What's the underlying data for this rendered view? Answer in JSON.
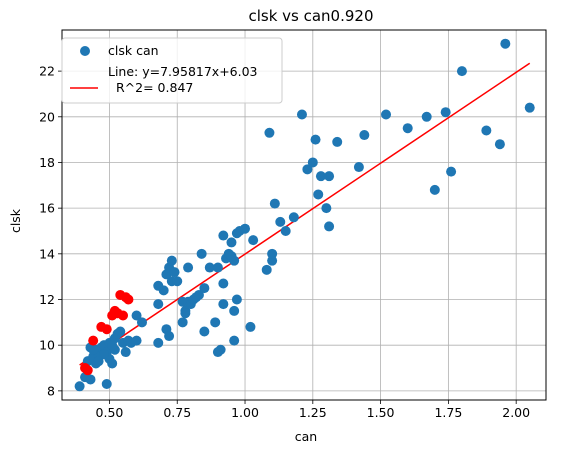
{
  "chart_data": {
    "type": "scatter",
    "title": "clsk vs can0.920",
    "xlabel": "can",
    "ylabel": "clsk",
    "xlim": [
      0.325,
      2.11
    ],
    "ylim": [
      7.6,
      23.8
    ],
    "xticks": [
      0.5,
      0.75,
      1.0,
      1.25,
      1.5,
      1.75,
      2.0
    ],
    "xtick_labels": [
      "0.50",
      "0.75",
      "1.00",
      "1.25",
      "1.50",
      "1.75",
      "2.00"
    ],
    "yticks": [
      8,
      10,
      12,
      14,
      16,
      18,
      20,
      22
    ],
    "ytick_labels": [
      "8",
      "10",
      "12",
      "14",
      "16",
      "18",
      "20",
      "22"
    ],
    "grid": true,
    "legend_position": "top-left",
    "legend": {
      "scatter_label": "clsk can",
      "line_label_1": "Line: y=7.95817x+6.03",
      "line_label_2": "R^2= 0.847"
    },
    "colors": {
      "points": "#1f77b4",
      "highlight_points": "#ff0000",
      "fit_line": "#ff0000",
      "grid": "#b0b0b0"
    },
    "fit_line": {
      "slope": 7.95817,
      "intercept": 6.03,
      "x_range": [
        0.39,
        2.05
      ]
    },
    "points": [
      [
        0.39,
        8.2
      ],
      [
        0.41,
        8.6
      ],
      [
        0.43,
        8.5
      ],
      [
        0.42,
        9.3
      ],
      [
        0.44,
        9.5
      ],
      [
        0.45,
        9.2
      ],
      [
        0.43,
        9.9
      ],
      [
        0.45,
        9.8
      ],
      [
        0.46,
        9.6
      ],
      [
        0.47,
        9.9
      ],
      [
        0.48,
        10.0
      ],
      [
        0.49,
        9.7
      ],
      [
        0.5,
        10.1
      ],
      [
        0.5,
        9.4
      ],
      [
        0.51,
        9.2
      ],
      [
        0.52,
        9.8
      ],
      [
        0.52,
        10.3
      ],
      [
        0.53,
        10.5
      ],
      [
        0.54,
        10.6
      ],
      [
        0.49,
        8.3
      ],
      [
        0.51,
        10.0
      ],
      [
        0.48,
        9.6
      ],
      [
        0.46,
        9.3
      ],
      [
        0.44,
        9.8
      ],
      [
        0.55,
        10.1
      ],
      [
        0.57,
        10.2
      ],
      [
        0.56,
        9.7
      ],
      [
        0.58,
        10.1
      ],
      [
        0.6,
        10.2
      ],
      [
        0.6,
        11.3
      ],
      [
        0.62,
        11.0
      ],
      [
        0.68,
        10.1
      ],
      [
        0.68,
        11.8
      ],
      [
        0.7,
        12.4
      ],
      [
        0.68,
        12.6
      ],
      [
        0.71,
        10.7
      ],
      [
        0.72,
        10.4
      ],
      [
        0.71,
        13.1
      ],
      [
        0.72,
        13.4
      ],
      [
        0.73,
        13.7
      ],
      [
        0.73,
        12.8
      ],
      [
        0.75,
        12.8
      ],
      [
        0.74,
        13.2
      ],
      [
        0.77,
        11.0
      ],
      [
        0.78,
        11.5
      ],
      [
        0.77,
        11.9
      ],
      [
        0.78,
        11.4
      ],
      [
        0.79,
        13.4
      ],
      [
        0.79,
        11.9
      ],
      [
        0.8,
        11.8
      ],
      [
        0.81,
        12.0
      ],
      [
        0.82,
        12.1
      ],
      [
        0.83,
        12.2
      ],
      [
        0.84,
        14.0
      ],
      [
        0.85,
        10.6
      ],
      [
        0.85,
        12.5
      ],
      [
        0.87,
        13.4
      ],
      [
        0.89,
        11.0
      ],
      [
        0.9,
        9.7
      ],
      [
        0.91,
        9.8
      ],
      [
        0.9,
        13.4
      ],
      [
        0.92,
        11.8
      ],
      [
        0.92,
        12.7
      ],
      [
        0.92,
        14.8
      ],
      [
        0.93,
        13.8
      ],
      [
        0.94,
        14.0
      ],
      [
        0.95,
        14.5
      ],
      [
        0.96,
        11.5
      ],
      [
        0.96,
        10.2
      ],
      [
        0.96,
        13.7
      ],
      [
        0.95,
        13.9
      ],
      [
        0.97,
        12.0
      ],
      [
        0.97,
        14.9
      ],
      [
        0.98,
        15.0
      ],
      [
        1.0,
        15.1
      ],
      [
        1.02,
        10.8
      ],
      [
        1.03,
        14.6
      ],
      [
        1.08,
        13.3
      ],
      [
        1.09,
        19.3
      ],
      [
        1.1,
        13.7
      ],
      [
        1.1,
        14.0
      ],
      [
        1.11,
        16.2
      ],
      [
        1.13,
        15.4
      ],
      [
        1.15,
        15.0
      ],
      [
        1.18,
        15.6
      ],
      [
        1.21,
        20.1
      ],
      [
        1.23,
        17.7
      ],
      [
        1.25,
        18.0
      ],
      [
        1.26,
        19.0
      ],
      [
        1.27,
        16.6
      ],
      [
        1.28,
        17.4
      ],
      [
        1.3,
        16.0
      ],
      [
        1.31,
        15.2
      ],
      [
        1.31,
        17.4
      ],
      [
        1.34,
        18.9
      ],
      [
        1.42,
        17.8
      ],
      [
        1.44,
        19.2
      ],
      [
        1.52,
        20.1
      ],
      [
        1.6,
        19.5
      ],
      [
        1.67,
        20.0
      ],
      [
        1.7,
        16.8
      ],
      [
        1.74,
        20.2
      ],
      [
        1.76,
        17.6
      ],
      [
        1.8,
        22.0
      ],
      [
        1.89,
        19.4
      ],
      [
        1.94,
        18.8
      ],
      [
        1.96,
        23.2
      ],
      [
        2.05,
        20.4
      ]
    ],
    "highlight_points": [
      [
        0.41,
        9.0
      ],
      [
        0.42,
        8.9
      ],
      [
        0.44,
        10.2
      ],
      [
        0.47,
        10.8
      ],
      [
        0.49,
        10.7
      ],
      [
        0.51,
        11.3
      ],
      [
        0.52,
        11.5
      ],
      [
        0.53,
        11.4
      ],
      [
        0.54,
        12.2
      ],
      [
        0.55,
        11.3
      ],
      [
        0.56,
        12.1
      ],
      [
        0.57,
        12.0
      ]
    ]
  }
}
